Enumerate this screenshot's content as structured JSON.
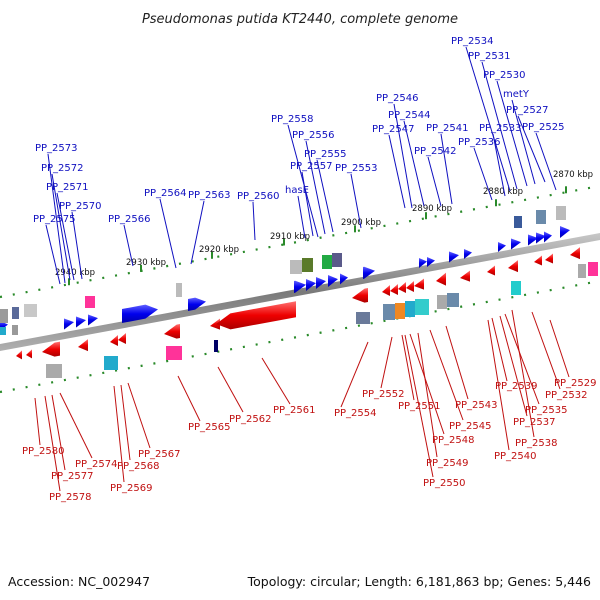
{
  "title": "Pseudomonas putida KT2440, complete genome",
  "footer": {
    "accession": "Accession: NC_002947",
    "summary": "Topology: circular; Length: 6,181,863 bp; Genes: 5,446"
  },
  "colors": {
    "forward": "#0000ee",
    "reverse": "#ee0000",
    "backbone": "#8a8a8a",
    "tick": "#2a8a2a",
    "forward_label": "#1010c0",
    "reverse_label": "#c01010"
  },
  "ticks": [
    {
      "label": "2870 kbp"
    },
    {
      "label": "2880 kbp"
    },
    {
      "label": "2890 kbp"
    },
    {
      "label": "2900 kbp"
    },
    {
      "label": "2910 kbp"
    },
    {
      "label": "2920 kbp"
    },
    {
      "label": "2930 kbp"
    },
    {
      "label": "2940 kbp"
    }
  ],
  "top_labels": [
    "PP_2534",
    "PP_2531",
    "PP_2530",
    "metY",
    "PP_2527",
    "PP_2546",
    "PP_2544",
    "PP_2547",
    "PP_2541",
    "PP_2533",
    "PP_2525",
    "PP_2536",
    "PP_2542",
    "PP_2558",
    "PP_2556",
    "PP_2555",
    "PP_2557",
    "PP_2553",
    "hasE",
    "PP_2573",
    "PP_2572",
    "PP_2571",
    "PP_2570",
    "PP_2575",
    "PP_2566",
    "PP_2564",
    "PP_2563",
    "PP_2560"
  ],
  "bottom_labels": [
    "PP_2529",
    "PP_2532",
    "PP_2539",
    "PP_2535",
    "PP_2537",
    "PP_2538",
    "PP_2540",
    "PP_2552",
    "PP_2551",
    "PP_2543",
    "PP_2545",
    "PP_2548",
    "PP_2549",
    "PP_2550",
    "PP_2554",
    "PP_2561",
    "PP_2562",
    "PP_2565",
    "PP_2580",
    "PP_2574",
    "PP_2577",
    "PP_2578",
    "PP_2567",
    "PP_2568",
    "PP_2569"
  ]
}
